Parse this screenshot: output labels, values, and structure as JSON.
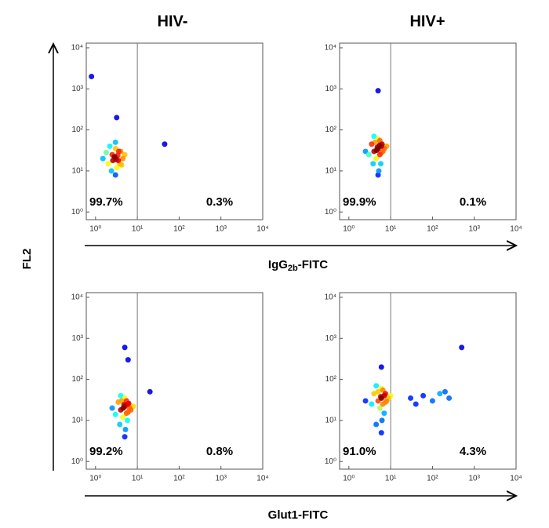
{
  "columns": [
    "HIV-",
    "HIV+"
  ],
  "y_axis_label": "FL2",
  "x_axis_labels": [
    [
      "IgG",
      "2b",
      "-FITC"
    ],
    [
      "Glut1-FITC"
    ]
  ],
  "chart_data": [
    {
      "type": "scatter",
      "xlog": true,
      "ylog": true,
      "colormap": "jet",
      "xlim": [
        0.6,
        10000
      ],
      "ylim": [
        0.65,
        13000
      ],
      "xticks": [
        {
          "value": 1,
          "label": "10⁰"
        },
        {
          "value": 10,
          "label": "10¹"
        },
        {
          "value": 100,
          "label": "10²"
        },
        {
          "value": 1000,
          "label": "10³"
        },
        {
          "value": 10000,
          "label": "10⁴"
        }
      ],
      "yticks": [
        {
          "value": 1,
          "label": "10⁰"
        },
        {
          "value": 10,
          "label": "10¹"
        },
        {
          "value": 100,
          "label": "10²"
        },
        {
          "value": 1000,
          "label": "10³"
        },
        {
          "value": 10000,
          "label": "10⁴"
        }
      ],
      "gate_x": 10,
      "quadrant_values": [
        99.7,
        0.3
      ],
      "quadrant_labels": [
        "99.7%",
        "0.3%"
      ],
      "x": [
        3,
        2.5,
        3.5,
        4,
        2,
        3,
        2.8,
        3.2,
        4.5,
        1.8,
        2.2,
        3.8,
        3,
        2.6,
        3.4,
        5,
        1.5,
        3,
        2.4,
        3.6,
        4.2,
        2.9,
        3.1,
        0.8,
        45,
        3.2
      ],
      "values": [
        20,
        25,
        18,
        30,
        15,
        35,
        22,
        12,
        20,
        28,
        40,
        15,
        8,
        18,
        24,
        25,
        20,
        50,
        10,
        30,
        14,
        22,
        19,
        2000,
        45,
        200
      ]
    },
    {
      "type": "scatter",
      "xlog": true,
      "ylog": true,
      "colormap": "jet",
      "xlim": [
        0.6,
        10000
      ],
      "ylim": [
        0.65,
        13000
      ],
      "xticks": [
        {
          "value": 1,
          "label": "10⁰"
        },
        {
          "value": 10,
          "label": "10¹"
        },
        {
          "value": 100,
          "label": "10²"
        },
        {
          "value": 1000,
          "label": "10³"
        },
        {
          "value": 10000,
          "label": "10⁴"
        }
      ],
      "yticks": [
        {
          "value": 1,
          "label": "10⁰"
        },
        {
          "value": 10,
          "label": "10¹"
        },
        {
          "value": 100,
          "label": "10²"
        },
        {
          "value": 1000,
          "label": "10³"
        },
        {
          "value": 10000,
          "label": "10⁴"
        }
      ],
      "gate_x": 10,
      "quadrant_values": [
        99.9,
        0.1
      ],
      "quadrant_labels": [
        "99.9%",
        "0.1%"
      ],
      "x": [
        5,
        4,
        6,
        5.5,
        3.5,
        4.5,
        6.5,
        5,
        7,
        3,
        4.2,
        5.8,
        4.8,
        6,
        2.5,
        5.2,
        8,
        4,
        5.5,
        3.8,
        6.2,
        5,
        4.6,
        5.4,
        5
      ],
      "values": [
        35,
        30,
        40,
        25,
        45,
        20,
        30,
        60,
        35,
        25,
        50,
        15,
        38,
        28,
        30,
        10,
        40,
        70,
        55,
        15,
        45,
        8,
        32,
        42,
        900
      ]
    },
    {
      "type": "scatter",
      "xlog": true,
      "ylog": true,
      "colormap": "jet",
      "xlim": [
        0.6,
        10000
      ],
      "ylim": [
        0.65,
        13000
      ],
      "xticks": [
        {
          "value": 1,
          "label": "10⁰"
        },
        {
          "value": 10,
          "label": "10¹"
        },
        {
          "value": 100,
          "label": "10²"
        },
        {
          "value": 1000,
          "label": "10³"
        },
        {
          "value": 10000,
          "label": "10⁴"
        }
      ],
      "yticks": [
        {
          "value": 1,
          "label": "10⁰"
        },
        {
          "value": 10,
          "label": "10¹"
        },
        {
          "value": 100,
          "label": "10²"
        },
        {
          "value": 1000,
          "label": "10³"
        },
        {
          "value": 10000,
          "label": "10⁴"
        }
      ],
      "gate_x": 10,
      "quadrant_values": [
        99.2,
        0.8
      ],
      "quadrant_labels": [
        "99.2%",
        "0.8%"
      ],
      "x": [
        5,
        4,
        6,
        5.5,
        3.5,
        4.5,
        6.5,
        5,
        7,
        3,
        4.2,
        5.8,
        4.8,
        6,
        2.5,
        5.2,
        8,
        4,
        5.5,
        3.8,
        6.2,
        5,
        4.6,
        5,
        6,
        20
      ],
      "values": [
        22,
        18,
        25,
        15,
        28,
        12,
        20,
        35,
        18,
        14,
        30,
        10,
        24,
        16,
        20,
        6,
        22,
        40,
        30,
        8,
        26,
        4,
        20,
        600,
        300,
        50
      ]
    },
    {
      "type": "scatter",
      "xlog": true,
      "ylog": true,
      "colormap": "jet",
      "xlim": [
        0.6,
        10000
      ],
      "ylim": [
        0.65,
        13000
      ],
      "xticks": [
        {
          "value": 1,
          "label": "10⁰"
        },
        {
          "value": 10,
          "label": "10¹"
        },
        {
          "value": 100,
          "label": "10²"
        },
        {
          "value": 1000,
          "label": "10³"
        },
        {
          "value": 10000,
          "label": "10⁴"
        }
      ],
      "yticks": [
        {
          "value": 1,
          "label": "10⁰"
        },
        {
          "value": 10,
          "label": "10¹"
        },
        {
          "value": 100,
          "label": "10²"
        },
        {
          "value": 1000,
          "label": "10³"
        },
        {
          "value": 10000,
          "label": "10⁴"
        }
      ],
      "gate_x": 10,
      "quadrant_values": [
        91.0,
        4.3
      ],
      "quadrant_labels": [
        "91.0%",
        "4.3%"
      ],
      "x": [
        6,
        5,
        7,
        6.5,
        4,
        5.5,
        8,
        6,
        9,
        3.5,
        5,
        7,
        5.8,
        7.5,
        2.5,
        6.2,
        10,
        4.5,
        6.5,
        4.5,
        7.5,
        6,
        30,
        60,
        100,
        150,
        250,
        40,
        200,
        500,
        6
      ],
      "values": [
        35,
        30,
        40,
        25,
        45,
        20,
        30,
        60,
        35,
        25,
        50,
        15,
        38,
        28,
        30,
        10,
        40,
        70,
        55,
        8,
        45,
        5,
        35,
        40,
        30,
        45,
        35,
        25,
        50,
        600,
        200
      ]
    }
  ]
}
